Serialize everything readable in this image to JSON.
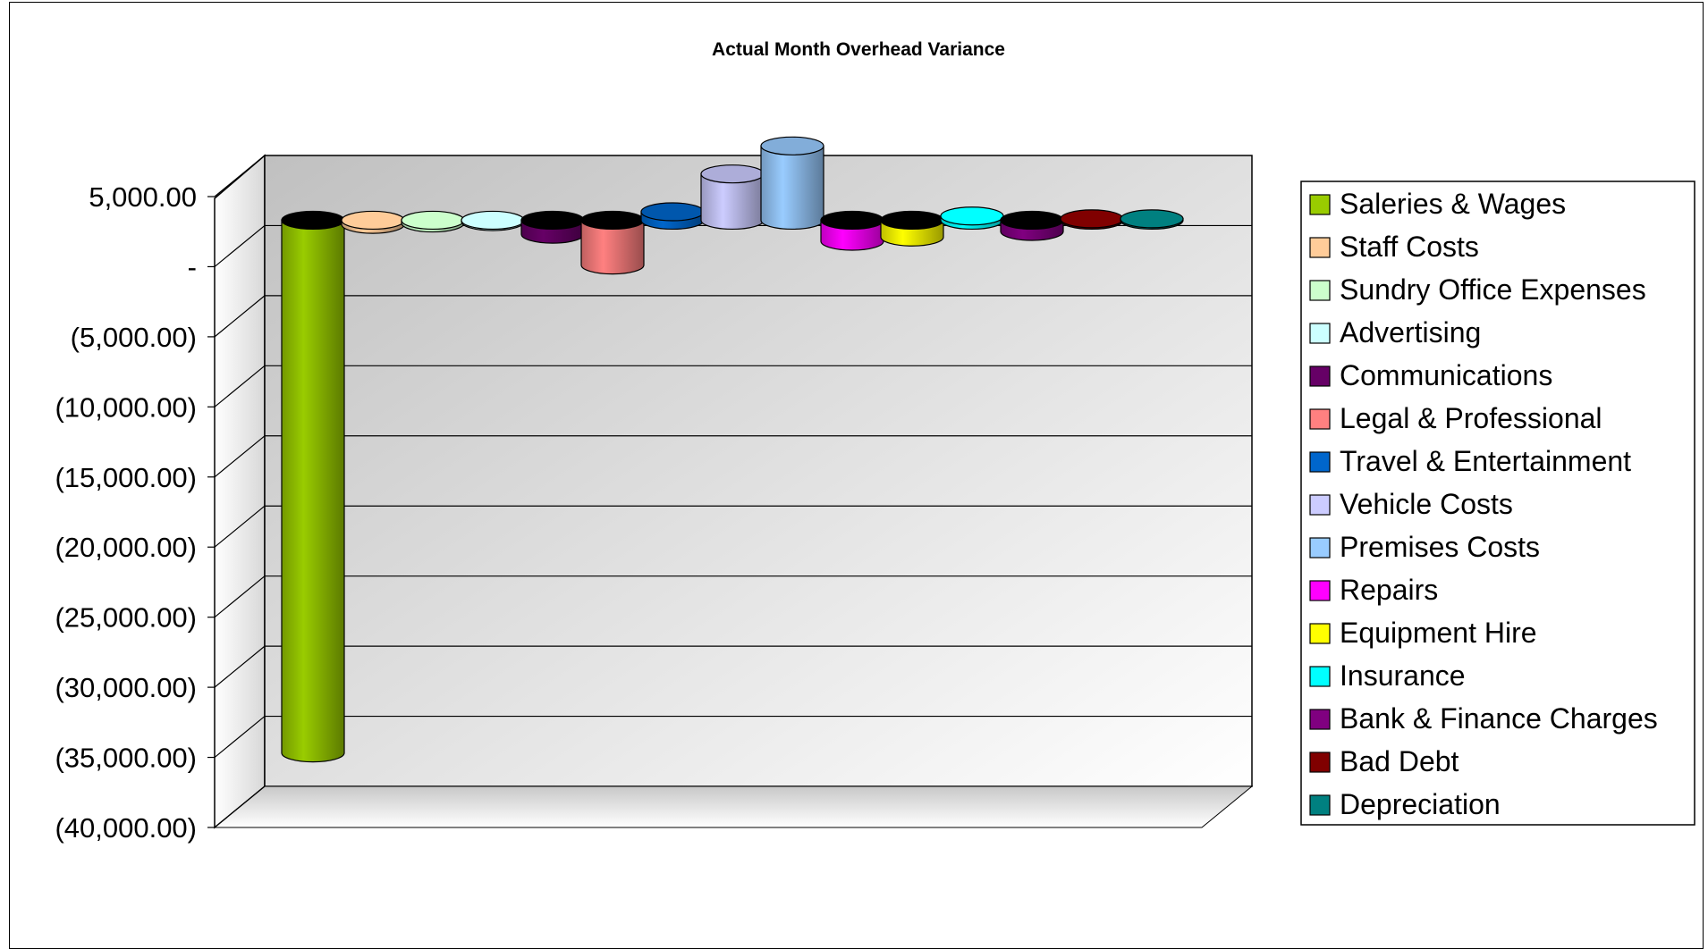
{
  "chart_data": {
    "type": "bar",
    "title": "Actual Month Overhead Variance",
    "xlabel": "",
    "ylabel": "",
    "ylim": [
      -40000,
      5000
    ],
    "yticks": [
      5000,
      0,
      -5000,
      -10000,
      -15000,
      -20000,
      -25000,
      -30000,
      -35000,
      -40000
    ],
    "ytick_labels": [
      "5,000.00",
      "-",
      "(5,000.00)",
      "(10,000.00)",
      "(15,000.00)",
      "(20,000.00)",
      "(25,000.00)",
      "(30,000.00)",
      "(35,000.00)",
      "(40,000.00)"
    ],
    "grid": true,
    "legend_position": "right",
    "series": [
      {
        "name": "Saleries & Wages",
        "value": -38000,
        "color": "#99cc00"
      },
      {
        "name": "Staff Costs",
        "value": -300,
        "color": "#ffcc99"
      },
      {
        "name": "Sundry Office Expenses",
        "value": -200,
        "color": "#ccffcc"
      },
      {
        "name": "Advertising",
        "value": -100,
        "color": "#ccffff"
      },
      {
        "name": "Communications",
        "value": -1000,
        "color": "#660066"
      },
      {
        "name": "Legal & Professional",
        "value": -3200,
        "color": "#ff8080"
      },
      {
        "name": "Travel & Entertainment",
        "value": 600,
        "color": "#0066cc"
      },
      {
        "name": "Vehicle Costs",
        "value": 3300,
        "color": "#ccccff"
      },
      {
        "name": "Premises Costs",
        "value": 5300,
        "color": "#99ccff"
      },
      {
        "name": "Repairs",
        "value": -1500,
        "color": "#ff00ff"
      },
      {
        "name": "Equipment Hire",
        "value": -1200,
        "color": "#ffff00"
      },
      {
        "name": "Insurance",
        "value": 300,
        "color": "#00ffff"
      },
      {
        "name": "Bank & Finance Charges",
        "value": -800,
        "color": "#800080"
      },
      {
        "name": "Bad Debt",
        "value": 100,
        "color": "#800000"
      },
      {
        "name": "Depreciation",
        "value": 100,
        "color": "#008080"
      }
    ]
  }
}
